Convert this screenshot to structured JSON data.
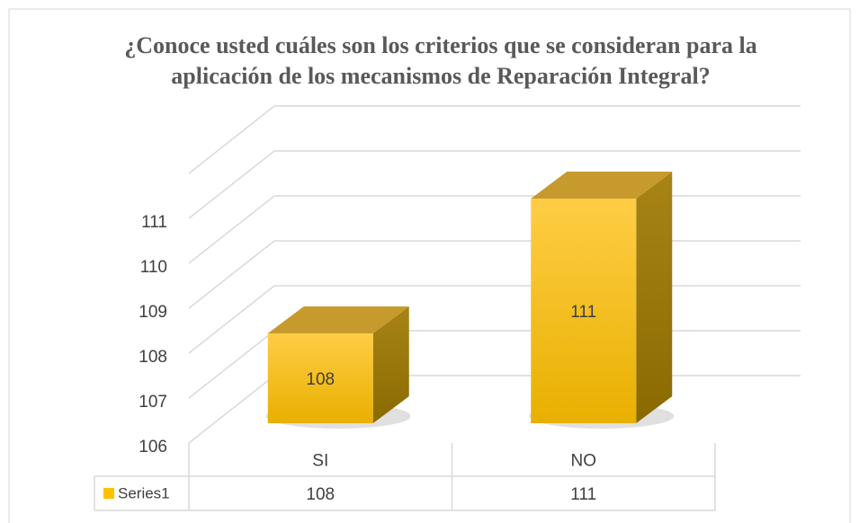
{
  "chart_data": {
    "type": "bar3d",
    "title": "¿Conoce usted cuáles son los criterios que se consideran para la aplicación de los mecanismos de Reparación Integral?",
    "categories": [
      "SI",
      "NO"
    ],
    "series": [
      {
        "name": "Series1",
        "color": "#ffc000",
        "values": [
          108,
          111
        ]
      }
    ],
    "ylim": [
      106,
      112
    ],
    "yticks": [
      106,
      107,
      108,
      109,
      110,
      111
    ],
    "grid": true,
    "data_table": true
  }
}
